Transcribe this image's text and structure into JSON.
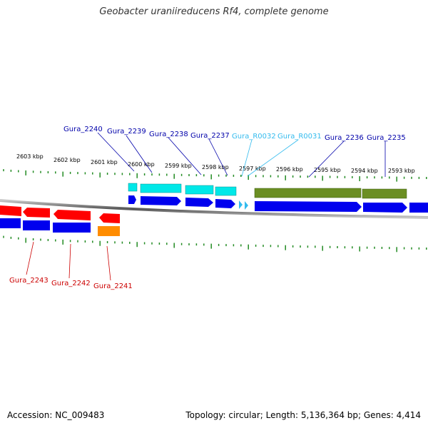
{
  "title": "Geobacter uraniireducens Rf4, complete genome",
  "footer": {
    "accession": "Accession: NC_009483",
    "summary": "Topology: circular; Length: 5,136,364 bp; Genes: 4,414"
  },
  "colors": {
    "red": "#ff0000",
    "blue": "#0000ee",
    "cyan": "#00e8e8",
    "olive": "#6b8e23",
    "orange": "#ff8c00",
    "label_blue": "#0000aa",
    "label_red": "#cc0000",
    "label_cyan": "#33bbee",
    "tick_green": "#228b22"
  },
  "scale_labels": [
    "2603 kbp",
    "2602 kbp",
    "2601 kbp",
    "2600 kbp",
    "2599 kbp",
    "2598 kbp",
    "2597 kbp",
    "2596 kbp",
    "2595 kbp",
    "2594 kbp",
    "2593 kbp"
  ],
  "top_labels": [
    "Gura_2240",
    "Gura_2239",
    "Gura_2238",
    "Gura_2237",
    "Gura_R0032",
    "Gura_R0031",
    "Gura_2236",
    "Gura_2235"
  ],
  "bottom_labels": [
    "Gura_2243",
    "Gura_2242",
    "Gura_2241"
  ]
}
